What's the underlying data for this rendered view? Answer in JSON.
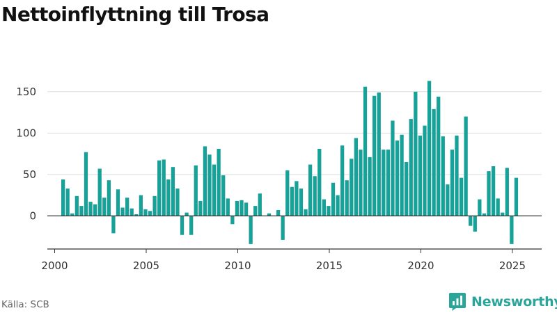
{
  "title": "Nettoinflyttning till Trosa",
  "source": "Källa: SCB",
  "brand": "Newsworthy",
  "colors": {
    "bar": "#16a298",
    "grid": "#dddddd",
    "axis": "#333333",
    "brand": "#2aa59a"
  },
  "chart_data": {
    "type": "bar",
    "title": "Nettoinflyttning till Trosa",
    "xlabel": "",
    "ylabel": "",
    "grid": "horizontal",
    "xlim": [
      1999.6,
      2026.6
    ],
    "ylim": [
      -40,
      170
    ],
    "yticks": [
      0,
      50,
      100,
      150
    ],
    "xticks": [
      2000,
      2005,
      2010,
      2015,
      2020,
      2025
    ],
    "x": [
      2000.46,
      2000.71,
      2000.96,
      2001.21,
      2001.46,
      2001.71,
      2001.96,
      2002.21,
      2002.46,
      2002.71,
      2002.96,
      2003.21,
      2003.46,
      2003.71,
      2003.96,
      2004.21,
      2004.46,
      2004.71,
      2004.96,
      2005.21,
      2005.46,
      2005.71,
      2005.96,
      2006.21,
      2006.46,
      2006.71,
      2006.96,
      2007.21,
      2007.46,
      2007.71,
      2007.96,
      2008.21,
      2008.46,
      2008.71,
      2008.96,
      2009.21,
      2009.46,
      2009.71,
      2009.96,
      2010.21,
      2010.46,
      2010.71,
      2010.96,
      2011.21,
      2011.46,
      2011.71,
      2011.96,
      2012.21,
      2012.46,
      2012.71,
      2012.96,
      2013.21,
      2013.46,
      2013.71,
      2013.96,
      2014.21,
      2014.46,
      2014.71,
      2014.96,
      2015.21,
      2015.46,
      2015.71,
      2015.96,
      2016.21,
      2016.46,
      2016.71,
      2016.96,
      2017.21,
      2017.46,
      2017.71,
      2017.96,
      2018.21,
      2018.46,
      2018.71,
      2018.96,
      2019.21,
      2019.46,
      2019.71,
      2019.96,
      2020.21,
      2020.46,
      2020.71,
      2020.96,
      2021.21,
      2021.46,
      2021.71,
      2021.96,
      2022.21,
      2022.46,
      2022.71,
      2022.96,
      2023.21,
      2023.46,
      2023.71,
      2023.96,
      2024.21,
      2024.46,
      2024.71,
      2024.96,
      2025.21
    ],
    "values": [
      44,
      33,
      3,
      24,
      12,
      77,
      17,
      14,
      57,
      22,
      43,
      -21,
      32,
      10,
      22,
      9,
      2,
      25,
      8,
      6,
      24,
      67,
      68,
      44,
      59,
      33,
      -23,
      4,
      -23,
      61,
      18,
      84,
      74,
      62,
      81,
      49,
      21,
      -10,
      18,
      19,
      16,
      -34,
      12,
      27,
      0,
      3,
      0,
      7,
      -29,
      55,
      35,
      42,
      33,
      8,
      62,
      48,
      81,
      20,
      12,
      40,
      25,
      85,
      43,
      69,
      94,
      80,
      156,
      71,
      145,
      149,
      80,
      80,
      115,
      91,
      98,
      65,
      117,
      150,
      97,
      109,
      163,
      129,
      144,
      96,
      38,
      80,
      97,
      46,
      120,
      -12,
      -19,
      20,
      3,
      54,
      60,
      21,
      4,
      58,
      -34,
      46
    ]
  }
}
